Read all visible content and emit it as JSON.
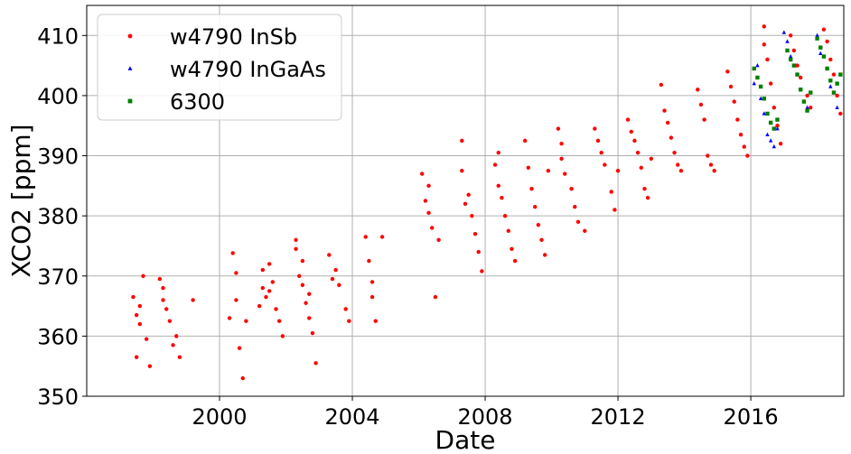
{
  "chart_data": {
    "type": "scatter",
    "title": "",
    "xlabel": "Date",
    "ylabel": "XCO2 [ppm]",
    "xlim": [
      1996.0,
      2018.8
    ],
    "ylim": [
      350,
      415
    ],
    "x_ticks": [
      2000,
      2004,
      2008,
      2012,
      2016
    ],
    "x_tick_labels": [
      "2000",
      "2004",
      "2008",
      "2012",
      "2016"
    ],
    "y_ticks": [
      350,
      360,
      370,
      380,
      390,
      400,
      410
    ],
    "y_tick_labels": [
      "350",
      "360",
      "370",
      "380",
      "390",
      "400",
      "410"
    ],
    "grid": true,
    "legend_position": "top-left",
    "series": [
      {
        "name": "w4790 InSb",
        "color": "#ff0000",
        "marker": "circle",
        "points": [
          [
            1997.4,
            366.5
          ],
          [
            1997.5,
            363.5
          ],
          [
            1997.5,
            356.5
          ],
          [
            1997.6,
            365.0
          ],
          [
            1997.6,
            362.0
          ],
          [
            1997.7,
            370.0
          ],
          [
            1997.8,
            359.5
          ],
          [
            1997.9,
            355.0
          ],
          [
            1998.2,
            369.5
          ],
          [
            1998.3,
            366.0
          ],
          [
            1998.3,
            368.0
          ],
          [
            1998.4,
            364.5
          ],
          [
            1998.5,
            362.5
          ],
          [
            1998.6,
            358.5
          ],
          [
            1998.7,
            360.0
          ],
          [
            1998.8,
            356.5
          ],
          [
            1999.2,
            366.0
          ],
          [
            2000.3,
            363.0
          ],
          [
            2000.4,
            373.8
          ],
          [
            2000.5,
            366.0
          ],
          [
            2000.5,
            370.5
          ],
          [
            2000.6,
            358.0
          ],
          [
            2000.7,
            353.0
          ],
          [
            2000.8,
            362.5
          ],
          [
            2001.2,
            365.0
          ],
          [
            2001.3,
            371.0
          ],
          [
            2001.3,
            368.0
          ],
          [
            2001.4,
            366.5
          ],
          [
            2001.5,
            372.0
          ],
          [
            2001.6,
            369.0
          ],
          [
            2001.7,
            364.5
          ],
          [
            2001.8,
            362.5
          ],
          [
            2001.9,
            360.0
          ],
          [
            2001.5,
            367.5
          ],
          [
            2002.3,
            374.5
          ],
          [
            2002.3,
            376.0
          ],
          [
            2002.4,
            370.0
          ],
          [
            2002.5,
            368.5
          ],
          [
            2002.5,
            372.5
          ],
          [
            2002.6,
            365.5
          ],
          [
            2002.7,
            363.0
          ],
          [
            2002.8,
            360.5
          ],
          [
            2002.9,
            355.5
          ],
          [
            2002.7,
            367.0
          ],
          [
            2003.3,
            373.5
          ],
          [
            2003.4,
            369.5
          ],
          [
            2003.5,
            371.0
          ],
          [
            2003.6,
            368.5
          ],
          [
            2003.8,
            364.5
          ],
          [
            2003.9,
            362.5
          ],
          [
            2004.4,
            376.5
          ],
          [
            2004.5,
            372.5
          ],
          [
            2004.6,
            369.0
          ],
          [
            2004.6,
            366.5
          ],
          [
            2004.7,
            362.5
          ],
          [
            2004.9,
            376.5
          ],
          [
            2006.1,
            387.0
          ],
          [
            2006.2,
            382.5
          ],
          [
            2006.3,
            380.5
          ],
          [
            2006.3,
            385.0
          ],
          [
            2006.4,
            378.0
          ],
          [
            2006.5,
            366.5
          ],
          [
            2006.6,
            376.0
          ],
          [
            2007.3,
            392.5
          ],
          [
            2007.3,
            387.5
          ],
          [
            2007.4,
            382.0
          ],
          [
            2007.5,
            383.5
          ],
          [
            2007.6,
            380.0
          ],
          [
            2007.7,
            377.0
          ],
          [
            2007.8,
            374.0
          ],
          [
            2007.9,
            370.8
          ],
          [
            2008.3,
            388.5
          ],
          [
            2008.4,
            390.5
          ],
          [
            2008.4,
            385.0
          ],
          [
            2008.5,
            383.0
          ],
          [
            2008.6,
            380.0
          ],
          [
            2008.7,
            377.5
          ],
          [
            2008.8,
            374.5
          ],
          [
            2008.9,
            372.5
          ],
          [
            2009.2,
            392.5
          ],
          [
            2009.3,
            388.0
          ],
          [
            2009.4,
            384.5
          ],
          [
            2009.5,
            381.5
          ],
          [
            2009.6,
            378.5
          ],
          [
            2009.7,
            376.0
          ],
          [
            2009.8,
            373.5
          ],
          [
            2009.9,
            387.5
          ],
          [
            2010.2,
            394.5
          ],
          [
            2010.3,
            392.0
          ],
          [
            2010.3,
            389.5
          ],
          [
            2010.4,
            387.0
          ],
          [
            2010.6,
            384.5
          ],
          [
            2010.7,
            381.5
          ],
          [
            2010.8,
            379.0
          ],
          [
            2011.0,
            377.5
          ],
          [
            2011.3,
            394.5
          ],
          [
            2011.4,
            392.5
          ],
          [
            2011.5,
            390.5
          ],
          [
            2011.6,
            388.5
          ],
          [
            2011.8,
            384.0
          ],
          [
            2011.9,
            381.0
          ],
          [
            2012.0,
            387.5
          ],
          [
            2012.3,
            396.0
          ],
          [
            2012.4,
            394.0
          ],
          [
            2012.5,
            392.5
          ],
          [
            2012.6,
            390.5
          ],
          [
            2012.7,
            388.0
          ],
          [
            2012.8,
            384.5
          ],
          [
            2012.9,
            383.0
          ],
          [
            2013.0,
            389.5
          ],
          [
            2013.3,
            401.8
          ],
          [
            2013.4,
            397.5
          ],
          [
            2013.5,
            395.5
          ],
          [
            2013.6,
            393.0
          ],
          [
            2013.7,
            390.5
          ],
          [
            2013.8,
            388.5
          ],
          [
            2013.9,
            387.5
          ],
          [
            2014.4,
            401.0
          ],
          [
            2014.5,
            398.5
          ],
          [
            2014.6,
            396.0
          ],
          [
            2014.7,
            390.0
          ],
          [
            2014.8,
            388.5
          ],
          [
            2014.9,
            387.5
          ],
          [
            2015.3,
            404.0
          ],
          [
            2015.4,
            401.5
          ],
          [
            2015.5,
            399.0
          ],
          [
            2015.6,
            396.0
          ],
          [
            2015.7,
            393.5
          ],
          [
            2015.8,
            391.5
          ],
          [
            2015.9,
            390.0
          ],
          [
            2016.4,
            411.5
          ],
          [
            2016.4,
            408.5
          ],
          [
            2016.5,
            406.0
          ],
          [
            2016.6,
            402.0
          ],
          [
            2016.7,
            398.0
          ],
          [
            2016.8,
            395.0
          ],
          [
            2016.9,
            392.0
          ],
          [
            2017.2,
            410.0
          ],
          [
            2017.3,
            407.5
          ],
          [
            2017.4,
            405.0
          ],
          [
            2017.5,
            403.0
          ],
          [
            2017.7,
            400.0
          ],
          [
            2017.8,
            398.0
          ],
          [
            2018.2,
            411.0
          ],
          [
            2018.3,
            409.0
          ],
          [
            2018.4,
            406.0
          ],
          [
            2018.5,
            403.5
          ],
          [
            2018.6,
            400.0
          ],
          [
            2018.7,
            397.0
          ]
        ]
      },
      {
        "name": "w4790 InGaAs",
        "color": "#0000ff",
        "marker": "triangle",
        "points": [
          [
            2016.1,
            402.0
          ],
          [
            2016.2,
            405.0
          ],
          [
            2016.3,
            399.5
          ],
          [
            2016.4,
            397.0
          ],
          [
            2016.5,
            393.5
          ],
          [
            2016.6,
            392.5
          ],
          [
            2016.7,
            391.5
          ],
          [
            2016.8,
            394.5
          ],
          [
            2017.0,
            410.5
          ],
          [
            2017.1,
            409.0
          ],
          [
            2017.2,
            406.5
          ],
          [
            2017.4,
            403.5
          ],
          [
            2017.5,
            401.0
          ],
          [
            2017.7,
            398.0
          ],
          [
            2018.0,
            410.0
          ],
          [
            2018.1,
            407.0
          ],
          [
            2018.3,
            404.5
          ],
          [
            2018.4,
            401.5
          ],
          [
            2018.6,
            398.0
          ]
        ]
      },
      {
        "name": "6300",
        "color": "#008000",
        "marker": "square",
        "points": [
          [
            2016.1,
            404.5
          ],
          [
            2016.2,
            403.0
          ],
          [
            2016.3,
            401.5
          ],
          [
            2016.4,
            399.5
          ],
          [
            2016.5,
            397.0
          ],
          [
            2016.6,
            395.5
          ],
          [
            2016.7,
            394.5
          ],
          [
            2016.8,
            396.0
          ],
          [
            2017.1,
            407.5
          ],
          [
            2017.2,
            406.0
          ],
          [
            2017.3,
            405.0
          ],
          [
            2017.4,
            403.5
          ],
          [
            2017.5,
            401.0
          ],
          [
            2017.6,
            399.0
          ],
          [
            2017.7,
            397.5
          ],
          [
            2017.8,
            400.5
          ],
          [
            2018.0,
            409.5
          ],
          [
            2018.1,
            408.0
          ],
          [
            2018.2,
            406.5
          ],
          [
            2018.3,
            404.5
          ],
          [
            2018.4,
            402.5
          ],
          [
            2018.5,
            400.5
          ],
          [
            2018.6,
            402.0
          ],
          [
            2018.7,
            403.5
          ]
        ]
      }
    ]
  }
}
